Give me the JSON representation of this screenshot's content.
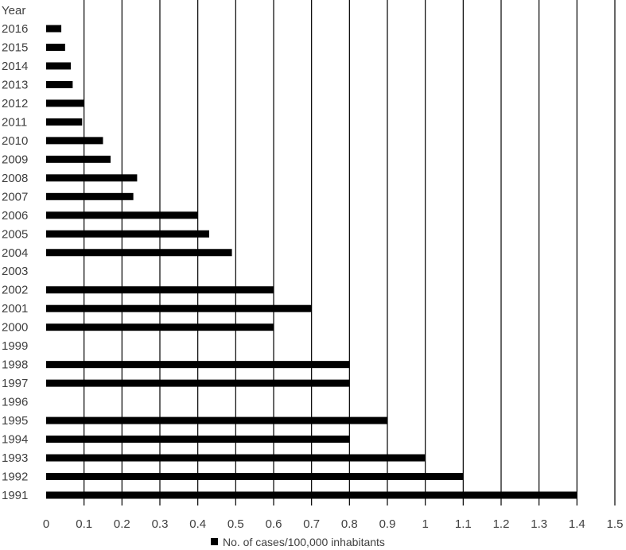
{
  "chart_data": {
    "type": "bar",
    "orientation": "horizontal",
    "y_axis_title": "Year",
    "categories": [
      "2016",
      "2015",
      "2014",
      "2013",
      "2012",
      "2011",
      "2010",
      "2009",
      "2008",
      "2007",
      "2006",
      "2005",
      "2004",
      "2003",
      "2002",
      "2001",
      "2000",
      "1999",
      "1998",
      "1997",
      "1996",
      "1995",
      "1994",
      "1993",
      "1992",
      "1991"
    ],
    "series": [
      {
        "name": "No. of cases/100,000 inhabitants",
        "values": [
          0.04,
          0.05,
          0.065,
          0.07,
          0.1,
          0.095,
          0.15,
          0.17,
          0.24,
          0.23,
          0.4,
          0.43,
          0.49,
          null,
          0.6,
          0.7,
          0.6,
          null,
          0.8,
          0.8,
          null,
          0.9,
          0.8,
          1.0,
          1.1,
          1.4
        ]
      }
    ],
    "xlim": [
      0,
      1.5
    ],
    "xticks": [
      "0",
      "0.1",
      "0.2",
      "0.3",
      "0.4",
      "0.5",
      "0.6",
      "0.7",
      "0.8",
      "0.9",
      "1",
      "1.1",
      "1.2",
      "1.3",
      "1.4",
      "1.5"
    ],
    "grid": "vertical",
    "bar_color": "#000000",
    "legend_position": "bottom"
  }
}
